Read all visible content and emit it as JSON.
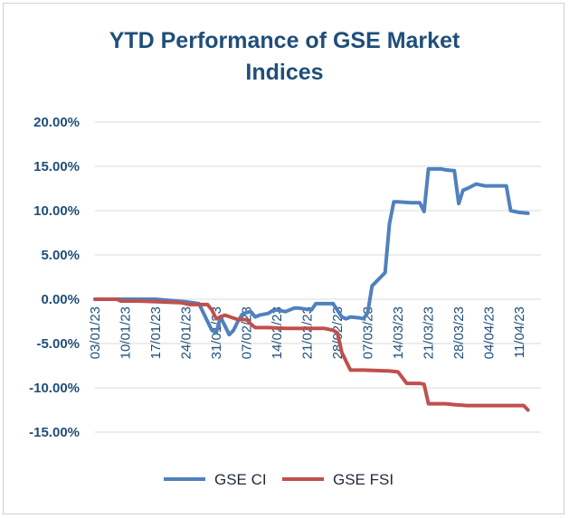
{
  "chart_data": {
    "type": "line",
    "title_lines": [
      "YTD Performance of GSE Market",
      "Indices"
    ],
    "xlabel": "",
    "ylabel": "",
    "ylim": [
      -15,
      20
    ],
    "y_ticks": [
      "20.00%",
      "15.00%",
      "10.00%",
      "5.00%",
      "0.00%",
      "-5.00%",
      "-10.00%",
      "-15.00%"
    ],
    "y_tick_values": [
      20,
      15,
      10,
      5,
      0,
      -5,
      -10,
      -15
    ],
    "x_tick_labels": [
      "03/01/23",
      "10/01/23",
      "17/01/23",
      "24/01/23",
      "31/01/23",
      "07/02/23",
      "14/02/23",
      "21/02/23",
      "28/02/23",
      "07/03/23",
      "14/03/23",
      "21/03/23",
      "28/03/23",
      "04/04/23",
      "11/04/23"
    ],
    "x_tick_days": [
      0,
      7,
      14,
      21,
      28,
      35,
      42,
      49,
      56,
      63,
      70,
      77,
      84,
      91,
      98
    ],
    "x_range_days": [
      0,
      103
    ],
    "grid": true,
    "legend_position": "bottom",
    "series": [
      {
        "name": "GSE CI",
        "color": "#4f81bd",
        "points": [
          [
            0,
            0
          ],
          [
            7,
            0
          ],
          [
            14,
            0
          ],
          [
            21,
            -0.3
          ],
          [
            24,
            -0.5
          ],
          [
            26,
            -2.5
          ],
          [
            27,
            -3.5
          ],
          [
            28,
            -3.8
          ],
          [
            29,
            -2.0
          ],
          [
            30,
            -3.0
          ],
          [
            31,
            -4.0
          ],
          [
            32,
            -3.5
          ],
          [
            33,
            -2.5
          ],
          [
            34,
            -1.7
          ],
          [
            35,
            -1.5
          ],
          [
            36,
            -1.4
          ],
          [
            37,
            -2.0
          ],
          [
            38,
            -1.8
          ],
          [
            40,
            -1.6
          ],
          [
            41,
            -1.3
          ],
          [
            42,
            -1.2
          ],
          [
            44,
            -1.4
          ],
          [
            46,
            -1.0
          ],
          [
            47,
            -1.0
          ],
          [
            50,
            -1.2
          ],
          [
            51,
            -0.5
          ],
          [
            54,
            -0.5
          ],
          [
            55,
            -0.5
          ],
          [
            57,
            -2.0
          ],
          [
            58,
            -2.2
          ],
          [
            59,
            -2.0
          ],
          [
            61,
            -2.1
          ],
          [
            62,
            -2.2
          ],
          [
            63,
            -1.5
          ],
          [
            64,
            1.5
          ],
          [
            66,
            2.5
          ],
          [
            67,
            3.0
          ],
          [
            68,
            8.5
          ],
          [
            69,
            11.0
          ],
          [
            70,
            11.0
          ],
          [
            73,
            10.9
          ],
          [
            75,
            10.9
          ],
          [
            76,
            9.9
          ],
          [
            77,
            14.7
          ],
          [
            80,
            14.7
          ],
          [
            81,
            14.6
          ],
          [
            83,
            14.5
          ],
          [
            84,
            10.8
          ],
          [
            85,
            12.3
          ],
          [
            86,
            12.5
          ],
          [
            88,
            13.0
          ],
          [
            90,
            12.8
          ],
          [
            92,
            12.8
          ],
          [
            95,
            12.8
          ],
          [
            96,
            10.0
          ],
          [
            98,
            9.8
          ],
          [
            100,
            9.7
          ]
        ]
      },
      {
        "name": "GSE FSI",
        "color": "#c0504d",
        "points": [
          [
            0,
            0
          ],
          [
            5,
            0
          ],
          [
            6,
            -0.2
          ],
          [
            10,
            -0.2
          ],
          [
            15,
            -0.3
          ],
          [
            20,
            -0.4
          ],
          [
            22,
            -0.6
          ],
          [
            26,
            -0.6
          ],
          [
            27,
            -1.2
          ],
          [
            28,
            -2.2
          ],
          [
            30,
            -1.8
          ],
          [
            33,
            -2.3
          ],
          [
            35,
            -2.3
          ],
          [
            36,
            -2.8
          ],
          [
            37,
            -3.2
          ],
          [
            40,
            -3.2
          ],
          [
            44,
            -3.3
          ],
          [
            50,
            -3.3
          ],
          [
            53,
            -3.3
          ],
          [
            55,
            -3.5
          ],
          [
            56,
            -3.8
          ],
          [
            57,
            -6.0
          ],
          [
            58,
            -7.0
          ],
          [
            59,
            -8.0
          ],
          [
            62,
            -8.0
          ],
          [
            68,
            -8.1
          ],
          [
            70,
            -8.2
          ],
          [
            72,
            -9.5
          ],
          [
            75,
            -9.5
          ],
          [
            76,
            -9.6
          ],
          [
            77,
            -11.8
          ],
          [
            81,
            -11.8
          ],
          [
            83,
            -11.9
          ],
          [
            86,
            -12.0
          ],
          [
            95,
            -12.0
          ],
          [
            99,
            -12.0
          ],
          [
            100,
            -12.5
          ]
        ]
      }
    ]
  }
}
